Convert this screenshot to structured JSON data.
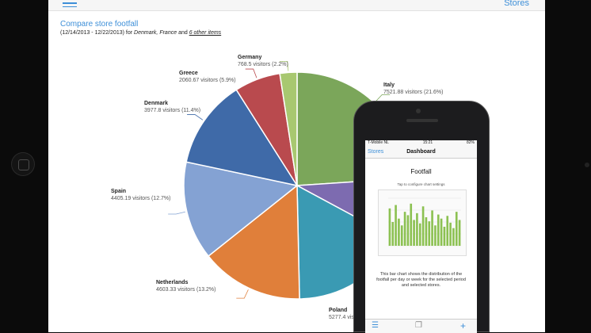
{
  "ipad": {
    "nav": {
      "right_link": "Stores"
    },
    "report": {
      "title": "Compare store footfall",
      "subtitle_prefix": "(12/14/2013 - 12/22/2013) for",
      "subtitle_countries": "Denmark, France",
      "subtitle_and": "and",
      "subtitle_more": "6 other items"
    },
    "labels": [
      {
        "name": "Germany",
        "value": "768.5 visitors (2.2%)"
      },
      {
        "name": "Greece",
        "value": "2060.67 visitors (5.9%)"
      },
      {
        "name": "Denmark",
        "value": "3977.8 visitors (11.4%)"
      },
      {
        "name": "Spain",
        "value": "4405.19 visitors (12.7%)"
      },
      {
        "name": "Netherlands",
        "value": "4603.33 visitors (13.2%)"
      },
      {
        "name": "Poland",
        "value": "5277.4 visitors ("
      },
      {
        "name": "Italy",
        "value": "7521.88 visitors (21.6%)"
      }
    ]
  },
  "chart_data": {
    "type": "pie",
    "slices": [
      {
        "label": "Italy",
        "value": 7521.88,
        "percent": 21.6,
        "color": "#7ba65a"
      },
      {
        "label": "France (hidden)",
        "value": 2800,
        "percent": 8.0,
        "color": "#7d6bb0"
      },
      {
        "label": "Poland",
        "value": 5277.4,
        "percent": 15.1,
        "color": "#3a9ab3"
      },
      {
        "label": "Netherlands",
        "value": 4603.33,
        "percent": 13.2,
        "color": "#e07f3a"
      },
      {
        "label": "Spain",
        "value": 4405.19,
        "percent": 12.7,
        "color": "#84a2d3"
      },
      {
        "label": "Denmark",
        "value": 3977.8,
        "percent": 11.4,
        "color": "#3f6aa8"
      },
      {
        "label": "Greece",
        "value": 2060.67,
        "percent": 5.9,
        "color": "#b94a4e"
      },
      {
        "label": "Germany",
        "value": 768.5,
        "percent": 2.2,
        "color": "#a8c870"
      }
    ]
  },
  "phone": {
    "status": {
      "carrier": "T-Mobile NL",
      "time": "15:21",
      "battery": "82%"
    },
    "nav": {
      "back": "Stores",
      "title": "Dashboard"
    },
    "card": {
      "title": "Footfall",
      "hint": "Tap to configure chart settings",
      "description": "This bar chart shows the distribution of the footfall per day or week for the selected period and selected stores."
    },
    "page_dots": "● ● ●",
    "mini_bars": [
      55,
      35,
      60,
      40,
      30,
      50,
      45,
      62,
      38,
      48,
      33,
      58,
      42,
      36,
      52,
      30,
      46,
      40,
      28,
      44,
      34,
      26,
      50,
      38
    ],
    "colors": {
      "accent": "#3d8fd8",
      "bar": "#8cc152"
    }
  }
}
